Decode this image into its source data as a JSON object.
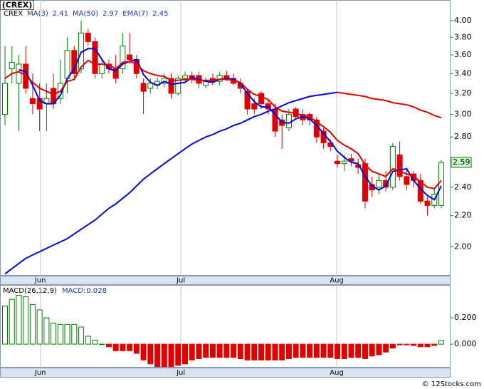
{
  "chart_data": [
    {
      "type": "candlestick",
      "title": "(CREX)",
      "symbol": "CREX",
      "scale": "log",
      "categories": [
        null,
        null,
        null,
        null,
        null,
        null,
        null,
        null,
        null,
        null,
        null,
        null,
        null,
        null,
        null,
        null,
        null,
        null,
        null,
        null,
        null,
        null,
        null,
        null,
        null,
        null,
        null,
        null,
        null,
        null,
        null,
        null,
        null,
        null,
        null,
        null,
        null,
        null,
        null,
        null,
        null,
        null,
        null,
        null,
        null,
        null,
        null,
        null,
        null,
        null,
        null,
        null,
        null,
        null,
        null,
        null,
        null,
        null,
        null,
        null,
        null,
        null,
        null,
        null
      ],
      "open": [
        3.0,
        3.45,
        3.3,
        3.5,
        3.15,
        3.15,
        3.1,
        3.25,
        3.15,
        3.35,
        3.65,
        3.45,
        3.85,
        3.75,
        3.4,
        3.5,
        3.45,
        3.45,
        3.6,
        3.55,
        3.3,
        3.25,
        3.28,
        3.3,
        3.35,
        3.2,
        3.35,
        3.38,
        3.38,
        3.28,
        3.35,
        3.32,
        3.38,
        3.35,
        3.3,
        3.22,
        3.1,
        3.2,
        3.1,
        3.05,
        2.95,
        2.88,
        3.05,
        3.0,
        3.0,
        2.95,
        2.85,
        2.75,
        2.6,
        2.58,
        2.62,
        2.57,
        2.58,
        2.42,
        2.4,
        2.45,
        2.4,
        2.65,
        2.48,
        2.5,
        2.45,
        2.3,
        2.27,
        2.27
      ],
      "high": [
        3.7,
        3.7,
        3.6,
        3.7,
        3.4,
        3.3,
        3.3,
        3.4,
        3.55,
        3.8,
        3.7,
        4.0,
        3.9,
        3.8,
        3.55,
        3.55,
        3.6,
        3.85,
        3.85,
        3.6,
        3.35,
        3.35,
        3.36,
        3.4,
        3.4,
        3.38,
        3.42,
        3.42,
        3.42,
        3.36,
        3.4,
        3.42,
        3.43,
        3.4,
        3.35,
        3.25,
        3.15,
        3.22,
        3.15,
        3.1,
        3.0,
        3.05,
        3.07,
        3.05,
        3.02,
        2.98,
        2.88,
        2.78,
        2.65,
        2.65,
        2.66,
        2.62,
        2.62,
        2.48,
        2.5,
        2.52,
        2.75,
        2.76,
        2.55,
        2.52,
        2.5,
        2.33,
        2.4,
        2.61
      ],
      "low": [
        2.9,
        3.3,
        2.85,
        3.2,
        3.0,
        2.85,
        2.85,
        3.05,
        3.1,
        3.2,
        3.35,
        3.4,
        3.7,
        3.35,
        3.35,
        3.4,
        3.3,
        3.4,
        3.5,
        3.35,
        3.0,
        3.2,
        3.24,
        3.26,
        3.15,
        3.18,
        3.32,
        3.3,
        3.25,
        3.25,
        3.28,
        3.28,
        3.32,
        3.28,
        3.2,
        3.0,
        3.0,
        3.05,
        3.0,
        2.8,
        2.7,
        2.85,
        2.95,
        2.9,
        2.9,
        2.75,
        2.7,
        2.68,
        2.55,
        2.52,
        2.56,
        2.5,
        2.25,
        2.33,
        2.35,
        2.37,
        2.38,
        2.45,
        2.38,
        2.4,
        2.28,
        2.2,
        2.25,
        2.25
      ],
      "close": [
        3.3,
        3.52,
        3.5,
        3.25,
        3.1,
        3.05,
        3.15,
        3.1,
        3.3,
        3.65,
        3.4,
        3.85,
        3.75,
        3.4,
        3.5,
        3.45,
        3.35,
        3.7,
        3.55,
        3.4,
        3.22,
        3.3,
        3.32,
        3.35,
        3.2,
        3.35,
        3.38,
        3.35,
        3.3,
        3.32,
        3.32,
        3.38,
        3.35,
        3.3,
        3.25,
        3.05,
        3.05,
        3.1,
        3.05,
        2.85,
        2.9,
        3.0,
        2.98,
        2.95,
        2.95,
        2.8,
        2.75,
        2.72,
        2.58,
        2.6,
        2.6,
        2.55,
        2.3,
        2.38,
        2.45,
        2.4,
        2.72,
        2.48,
        2.42,
        2.45,
        2.3,
        2.27,
        2.35,
        2.59
      ],
      "up_color": "#008000",
      "down_color": "#e00000",
      "series": [
        {
          "name": "MA(3)",
          "color": "#0000dd",
          "values": [
            null,
            null,
            3.44,
            3.42,
            3.28,
            3.13,
            3.1,
            3.1,
            3.18,
            3.35,
            3.45,
            3.63,
            3.67,
            3.67,
            3.55,
            3.45,
            3.43,
            3.5,
            3.53,
            3.55,
            3.39,
            3.31,
            3.28,
            3.32,
            3.29,
            3.3,
            3.31,
            3.36,
            3.34,
            3.32,
            3.31,
            3.34,
            3.35,
            3.34,
            3.3,
            3.2,
            3.12,
            3.07,
            3.07,
            3.0,
            2.93,
            2.92,
            2.96,
            2.98,
            2.96,
            2.9,
            2.83,
            2.76,
            2.68,
            2.63,
            2.59,
            2.58,
            2.48,
            2.41,
            2.38,
            2.41,
            2.52,
            2.53,
            2.54,
            2.45,
            2.39,
            2.34,
            2.31,
            2.41
          ]
        },
        {
          "name": "MA(50)",
          "color": "#0000dd",
          "falling_color": "#e00000",
          "values": [
            1.84,
            1.87,
            1.9,
            1.93,
            1.95,
            1.97,
            1.99,
            2.01,
            2.03,
            2.05,
            2.08,
            2.11,
            2.14,
            2.17,
            2.21,
            2.25,
            2.28,
            2.32,
            2.36,
            2.41,
            2.46,
            2.5,
            2.54,
            2.58,
            2.62,
            2.66,
            2.7,
            2.74,
            2.77,
            2.8,
            2.82,
            2.85,
            2.87,
            2.9,
            2.92,
            2.95,
            2.98,
            3.0,
            3.03,
            3.05,
            3.08,
            3.11,
            3.13,
            3.15,
            3.17,
            3.18,
            3.19,
            3.2,
            3.21,
            3.2,
            3.19,
            3.18,
            3.17,
            3.15,
            3.14,
            3.13,
            3.11,
            3.1,
            3.09,
            3.07,
            3.04,
            3.02,
            2.99,
            2.97
          ]
        },
        {
          "name": "EMA(7)",
          "color": "#e00000",
          "values": [
            3.35,
            3.4,
            3.42,
            3.38,
            3.31,
            3.25,
            3.22,
            3.19,
            3.22,
            3.32,
            3.34,
            3.47,
            3.54,
            3.5,
            3.5,
            3.49,
            3.45,
            3.52,
            3.53,
            3.5,
            3.43,
            3.4,
            3.38,
            3.37,
            3.33,
            3.33,
            3.34,
            3.34,
            3.33,
            3.33,
            3.33,
            3.34,
            3.34,
            3.33,
            3.31,
            3.24,
            3.19,
            3.17,
            3.14,
            3.07,
            3.03,
            3.02,
            3.01,
            2.99,
            2.98,
            2.93,
            2.89,
            2.84,
            2.77,
            2.73,
            2.7,
            2.66,
            2.57,
            2.52,
            2.5,
            2.48,
            2.54,
            2.52,
            2.5,
            2.48,
            2.44,
            2.4,
            2.39,
            2.45
          ]
        }
      ],
      "ylim": [
        1.83,
        4.26
      ],
      "yticks": [
        {
          "value": 2.0,
          "label": "2.00"
        },
        {
          "value": 2.2,
          "label": "2.20"
        },
        {
          "value": 2.4,
          "label": "2.40"
        },
        {
          "value": 2.6,
          "label": "2.60"
        },
        {
          "value": 2.8,
          "label": "2.80"
        },
        {
          "value": 3.0,
          "label": "3.00"
        },
        {
          "value": 3.2,
          "label": "3.20"
        },
        {
          "value": 3.4,
          "label": "3.40"
        },
        {
          "value": 3.6,
          "label": "3.60"
        },
        {
          "value": 3.8,
          "label": "3.80"
        },
        {
          "value": 4.0,
          "label": "4.00"
        }
      ],
      "xticks": [
        {
          "value": 5.1,
          "label": "Jun"
        },
        {
          "value": 25.4,
          "label": "Jul"
        },
        {
          "value": 47.9,
          "label": "Aug"
        }
      ],
      "grid": true
    },
    {
      "type": "bar",
      "title": "MACD(26,12,9)",
      "series": [
        {
          "name": "MACD:",
          "color": "#008000",
          "negative_color": "#e00000",
          "values": [
            0.29,
            0.34,
            0.37,
            0.36,
            0.3,
            0.26,
            0.2,
            0.16,
            0.15,
            0.15,
            0.15,
            0.13,
            0.06,
            0.03,
            0.0,
            -0.02,
            -0.05,
            -0.05,
            -0.05,
            -0.07,
            -0.12,
            -0.15,
            -0.17,
            -0.17,
            -0.17,
            -0.16,
            -0.15,
            -0.12,
            -0.11,
            -0.1,
            -0.1,
            -0.1,
            -0.1,
            -0.1,
            -0.11,
            -0.12,
            -0.12,
            -0.12,
            -0.12,
            -0.12,
            -0.12,
            -0.11,
            -0.1,
            -0.1,
            -0.1,
            -0.1,
            -0.1,
            -0.1,
            -0.11,
            -0.11,
            -0.1,
            -0.1,
            -0.11,
            -0.09,
            -0.08,
            -0.06,
            -0.03,
            -0.005,
            -0.005,
            -0.01,
            -0.02,
            -0.02,
            -0.01,
            0.028
          ]
        }
      ],
      "ylim": [
        -0.178,
        0.449
      ],
      "yticks": [
        {
          "value": 0.0,
          "label": "0.000"
        },
        {
          "value": 0.2,
          "label": "0.200"
        }
      ],
      "xticks": [
        {
          "value": 5.1,
          "label": "Jun"
        },
        {
          "value": 25.4,
          "label": "Jul"
        },
        {
          "value": 47.9,
          "label": "Aug"
        }
      ],
      "grid": true
    }
  ],
  "footer": "© 12Stocks.com"
}
